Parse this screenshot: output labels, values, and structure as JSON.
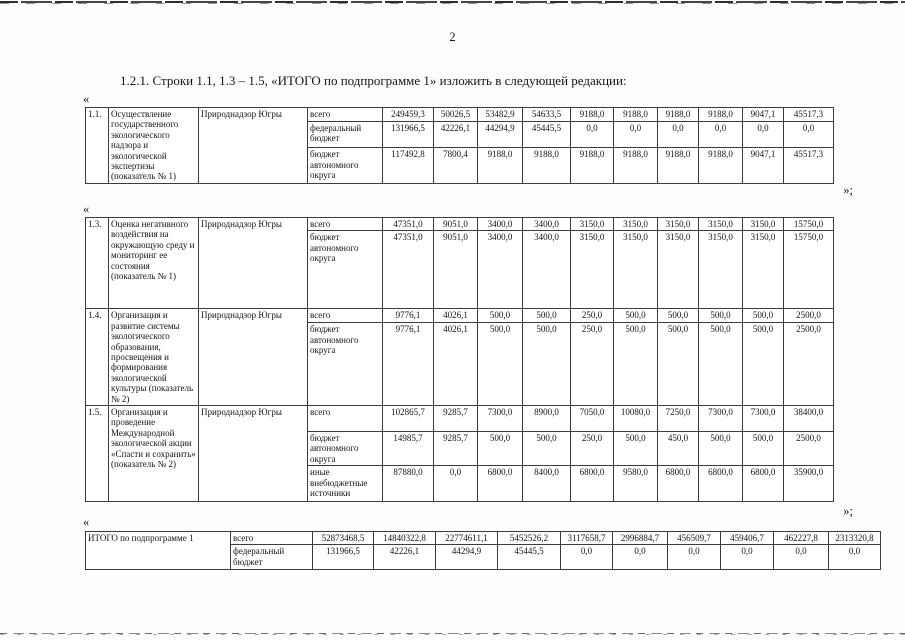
{
  "page": {
    "number": "2",
    "heading": "1.2.1. Строки 1.1, 1.3 – 1.5, «ИТОГО по подпрограмме 1» изложить в следующей редакции:",
    "open_quote": "«",
    "close_quote": "»;"
  },
  "program_tables": [
    {
      "rows": [
        {
          "num": "1.1.",
          "title": "Осуществление государственного экологического надзора и экологической экспертизы (показатель № 1)",
          "executor": "Природнадзор Югры",
          "lines": [
            {
              "label": "всего",
              "values": [
                "249459,3",
                "50026,5",
                "53482,9",
                "54633,5",
                "9188,0",
                "9188,0",
                "9188,0",
                "9188,0",
                "9047,1",
                "45517,3"
              ]
            },
            {
              "label": "федеральный бюджет",
              "values": [
                "131966,5",
                "42226,1",
                "44294,9",
                "45445,5",
                "0,0",
                "0,0",
                "0,0",
                "0,0",
                "0,0",
                "0,0"
              ]
            },
            {
              "label": "бюджет автономного округа",
              "values": [
                "117492,8",
                "7800,4",
                "9188,0",
                "9188,0",
                "9188,0",
                "9188,0",
                "9188,0",
                "9188,0",
                "9047,1",
                "45517,3"
              ]
            }
          ]
        }
      ]
    },
    {
      "rows": [
        {
          "num": "1.3.",
          "title": "Оценка негативного воздействия на окружающую среду и мониторинг ее состояния (показатель № 1)",
          "executor": "Природнадзор Югры",
          "lines": [
            {
              "label": "всего",
              "values": [
                "47351,0",
                "9051,0",
                "3400,0",
                "3400,0",
                "3150,0",
                "3150,0",
                "3150,0",
                "3150,0",
                "3150,0",
                "15750,0"
              ]
            },
            {
              "label": "бюджет автономного округа",
              "values": [
                "47351,0",
                "9051,0",
                "3400,0",
                "3400,0",
                "3150,0",
                "3150,0",
                "3150,0",
                "3150,0",
                "3150,0",
                "15750,0"
              ]
            }
          ]
        },
        {
          "num": "1.4.",
          "title": "Организация и развитие системы экологического образования, просвещения и формирования экологической культуры (показатель № 2)",
          "executor": "Природнадзор Югры",
          "lines": [
            {
              "label": "всего",
              "values": [
                "9776,1",
                "4026,1",
                "500,0",
                "500,0",
                "250,0",
                "500,0",
                "500,0",
                "500,0",
                "500,0",
                "2500,0"
              ]
            },
            {
              "label": "бюджет автономного округа",
              "values": [
                "9776,1",
                "4026,1",
                "500,0",
                "500,0",
                "250,0",
                "500,0",
                "500,0",
                "500,0",
                "500,0",
                "2500,0"
              ]
            }
          ]
        },
        {
          "num": "1.5.",
          "title": "Организация и проведение Международной экологической акции «Спасти и сохранить» (показатель № 2)",
          "executor": "Природнадзор Югры",
          "lines": [
            {
              "label": "всего",
              "values": [
                "102865,7",
                "9285,7",
                "7300,0",
                "8900,0",
                "7050,0",
                "10080,0",
                "7250,0",
                "7300,0",
                "7300,0",
                "38400,0"
              ]
            },
            {
              "label": "бюджет автономного округа",
              "values": [
                "14985,7",
                "9285,7",
                "500,0",
                "500,0",
                "250,0",
                "500,0",
                "450,0",
                "500,0",
                "500,0",
                "2500,0"
              ]
            },
            {
              "label": "иные внебюджетные источники",
              "values": [
                "87880,0",
                "0,0",
                "6800,0",
                "8400,0",
                "6800,0",
                "9580,0",
                "6800,0",
                "6800,0",
                "6800,0",
                "35900,0"
              ]
            }
          ]
        }
      ]
    }
  ],
  "totals_table": {
    "title": "ИТОГО по подпрограмме 1",
    "lines": [
      {
        "label": "всего",
        "values": [
          "52873468,5",
          "14840322,8",
          "22774611,1",
          "5452526,2",
          "3117658,7",
          "2996884,7",
          "456509,7",
          "459406,7",
          "462227,8",
          "2313320,8"
        ]
      },
      {
        "label": "федеральный бюджет",
        "values": [
          "131966,5",
          "42226,1",
          "44294,9",
          "45445,5",
          "0,0",
          "0,0",
          "0,0",
          "0,0",
          "0,0",
          "0,0"
        ]
      }
    ]
  }
}
